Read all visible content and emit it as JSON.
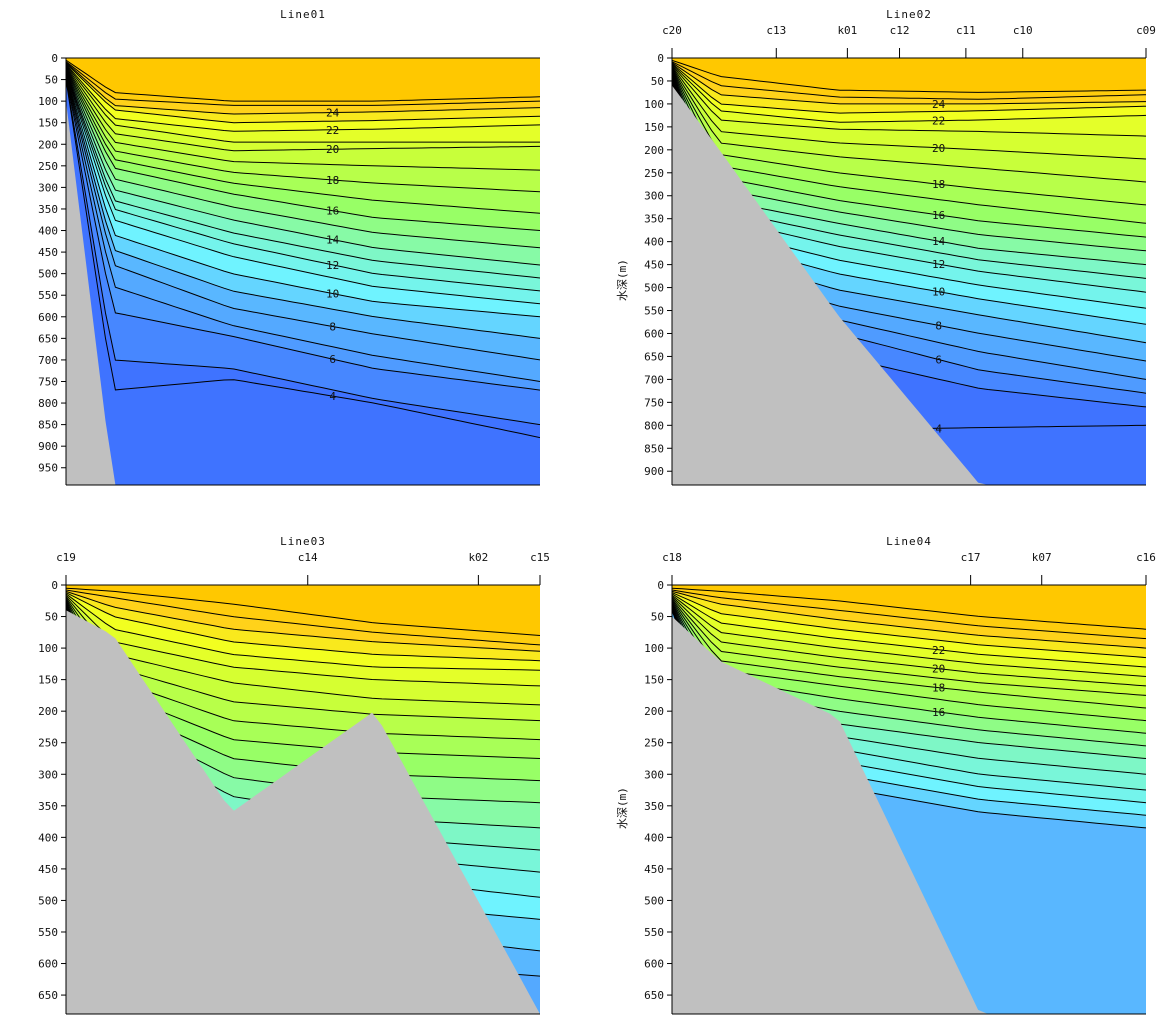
{
  "chart_data": [
    {
      "type": "heatmap",
      "title": "Line01",
      "ylabel": "水深(m)",
      "show_ylabel": false,
      "ylim": [
        0,
        990
      ],
      "yticks": [
        0,
        50,
        100,
        150,
        200,
        250,
        300,
        350,
        400,
        450,
        500,
        550,
        600,
        650,
        700,
        750,
        800,
        850,
        900,
        950
      ],
      "stations": [],
      "surface_isotherm": 26,
      "isotherms": [
        {
          "temp": 26,
          "label": "",
          "depth": [
            5,
            80,
            100,
            100,
            90
          ]
        },
        {
          "temp": 25,
          "label": "",
          "depth": [
            8,
            95,
            110,
            110,
            100
          ]
        },
        {
          "temp": 24,
          "label": "24",
          "depth": [
            10,
            110,
            130,
            125,
            115
          ]
        },
        {
          "temp": 23,
          "label": "",
          "depth": [
            12,
            120,
            150,
            145,
            135
          ]
        },
        {
          "temp": 22,
          "label": "22",
          "depth": [
            14,
            140,
            170,
            165,
            155
          ]
        },
        {
          "temp": 21,
          "label": "",
          "depth": [
            16,
            155,
            195,
            195,
            195
          ]
        },
        {
          "temp": 20,
          "label": "20",
          "depth": [
            18,
            175,
            215,
            210,
            205
          ]
        },
        {
          "temp": 19,
          "label": "",
          "depth": [
            20,
            195,
            240,
            250,
            260
          ]
        },
        {
          "temp": 18,
          "label": "18",
          "depth": [
            22,
            215,
            265,
            290,
            310
          ]
        },
        {
          "temp": 17,
          "label": "",
          "depth": [
            24,
            235,
            290,
            330,
            360
          ]
        },
        {
          "temp": 16,
          "label": "16",
          "depth": [
            26,
            255,
            315,
            370,
            400
          ]
        },
        {
          "temp": 15,
          "label": "",
          "depth": [
            28,
            280,
            345,
            405,
            440
          ]
        },
        {
          "temp": 14,
          "label": "14",
          "depth": [
            30,
            305,
            375,
            440,
            480
          ]
        },
        {
          "temp": 13,
          "label": "",
          "depth": [
            32,
            330,
            405,
            470,
            510
          ]
        },
        {
          "temp": 12,
          "label": "12",
          "depth": [
            34,
            350,
            430,
            500,
            540
          ]
        },
        {
          "temp": 11,
          "label": "",
          "depth": [
            36,
            375,
            460,
            530,
            570
          ]
        },
        {
          "temp": 10,
          "label": "10",
          "depth": [
            38,
            410,
            500,
            565,
            600
          ]
        },
        {
          "temp": 9,
          "label": "",
          "depth": [
            40,
            445,
            540,
            600,
            650
          ]
        },
        {
          "temp": 8,
          "label": "8",
          "depth": [
            42,
            480,
            580,
            640,
            700
          ]
        },
        {
          "temp": 7,
          "label": "",
          "depth": [
            44,
            530,
            620,
            690,
            750
          ]
        },
        {
          "temp": 6,
          "label": "6",
          "depth": [
            46,
            590,
            645,
            720,
            770
          ]
        },
        {
          "temp": 5,
          "label": "",
          "depth": [
            48,
            700,
            720,
            790,
            850
          ]
        },
        {
          "temp": 4,
          "label": "4",
          "depth": [
            50,
            770,
            745,
            800,
            880
          ]
        }
      ],
      "bottom_depth": [
        100,
        990,
        990,
        990,
        990
      ]
    },
    {
      "type": "heatmap",
      "title": "Line02",
      "ylabel": "水深(m)",
      "show_ylabel": true,
      "ylim": [
        0,
        930
      ],
      "yticks": [
        0,
        50,
        100,
        150,
        200,
        250,
        300,
        350,
        400,
        450,
        500,
        550,
        600,
        650,
        700,
        750,
        800,
        850,
        900
      ],
      "stations": [
        {
          "name": "c20",
          "pos": 0.0
        },
        {
          "name": "c13",
          "pos": 0.22
        },
        {
          "name": "k01",
          "pos": 0.37
        },
        {
          "name": "c12",
          "pos": 0.48
        },
        {
          "name": "c11",
          "pos": 0.62
        },
        {
          "name": "c10",
          "pos": 0.74
        },
        {
          "name": "c09",
          "pos": 1.0
        }
      ],
      "surface_isotherm": 26,
      "isotherms": [
        {
          "temp": 26,
          "label": "",
          "depth": [
            5,
            40,
            70,
            75,
            70
          ]
        },
        {
          "temp": 25,
          "label": "",
          "depth": [
            8,
            60,
            85,
            90,
            80
          ]
        },
        {
          "temp": 24,
          "label": "24",
          "depth": [
            10,
            80,
            100,
            100,
            95
          ]
        },
        {
          "temp": 23,
          "label": "",
          "depth": [
            12,
            100,
            120,
            115,
            105
          ]
        },
        {
          "temp": 22,
          "label": "22",
          "depth": [
            14,
            115,
            140,
            135,
            125
          ]
        },
        {
          "temp": 21,
          "label": "",
          "depth": [
            16,
            135,
            155,
            160,
            170
          ]
        },
        {
          "temp": 20,
          "label": "20",
          "depth": [
            18,
            160,
            185,
            200,
            220
          ]
        },
        {
          "temp": 19,
          "label": "",
          "depth": [
            20,
            185,
            215,
            240,
            270
          ]
        },
        {
          "temp": 18,
          "label": "18",
          "depth": [
            22,
            210,
            250,
            285,
            320
          ]
        },
        {
          "temp": 17,
          "label": "",
          "depth": [
            24,
            235,
            280,
            320,
            360
          ]
        },
        {
          "temp": 16,
          "label": "16",
          "depth": [
            26,
            260,
            310,
            355,
            390
          ]
        },
        {
          "temp": 15,
          "label": "",
          "depth": [
            28,
            285,
            335,
            385,
            420
          ]
        },
        {
          "temp": 14,
          "label": "14",
          "depth": [
            30,
            310,
            360,
            415,
            450
          ]
        },
        {
          "temp": 13,
          "label": "",
          "depth": [
            32,
            330,
            385,
            440,
            480
          ]
        },
        {
          "temp": 12,
          "label": "12",
          "depth": [
            34,
            350,
            410,
            465,
            510
          ]
        },
        {
          "temp": 11,
          "label": "",
          "depth": [
            36,
            375,
            440,
            495,
            545
          ]
        },
        {
          "temp": 10,
          "label": "10",
          "depth": [
            38,
            400,
            470,
            525,
            580
          ]
        },
        {
          "temp": 9,
          "label": "",
          "depth": [
            40,
            430,
            505,
            560,
            620
          ]
        },
        {
          "temp": 8,
          "label": "8",
          "depth": [
            42,
            460,
            540,
            600,
            660
          ]
        },
        {
          "temp": 7,
          "label": "",
          "depth": [
            44,
            500,
            570,
            640,
            700
          ]
        },
        {
          "temp": 6,
          "label": "6",
          "depth": [
            46,
            540,
            600,
            680,
            730
          ]
        },
        {
          "temp": 5,
          "label": "",
          "depth": [
            48,
            600,
            650,
            720,
            760
          ]
        },
        {
          "temp": 4,
          "label": "4",
          "depth": [
            50,
            800,
            810,
            805,
            800
          ]
        }
      ],
      "bottom_depth": [
        60,
        200,
        560,
        930,
        930
      ]
    },
    {
      "type": "heatmap",
      "title": "Line03",
      "ylabel": "水深(m)",
      "show_ylabel": false,
      "ylim": [
        0,
        680
      ],
      "yticks": [
        0,
        50,
        100,
        150,
        200,
        250,
        300,
        350,
        400,
        450,
        500,
        550,
        600,
        650
      ],
      "stations": [
        {
          "name": "c19",
          "pos": 0.0
        },
        {
          "name": "c14",
          "pos": 0.51
        },
        {
          "name": "k02",
          "pos": 0.87
        },
        {
          "name": "c15",
          "pos": 1.0
        }
      ],
      "surface_isotherm": 26,
      "isotherms": [
        {
          "temp": 26,
          "label": "",
          "depth": [
            5,
            10,
            30,
            60,
            80
          ]
        },
        {
          "temp": 25,
          "label": "",
          "depth": [
            8,
            20,
            50,
            75,
            95
          ]
        },
        {
          "temp": 24,
          "label": "",
          "depth": [
            10,
            35,
            70,
            90,
            105
          ]
        },
        {
          "temp": 23,
          "label": "",
          "depth": [
            12,
            50,
            90,
            110,
            120
          ]
        },
        {
          "temp": 22,
          "label": "",
          "depth": [
            14,
            70,
            110,
            130,
            135
          ]
        },
        {
          "temp": 21,
          "label": "",
          "depth": [
            16,
            90,
            130,
            150,
            160
          ]
        },
        {
          "temp": 20,
          "label": "",
          "depth": [
            18,
            110,
            155,
            180,
            190
          ]
        },
        {
          "temp": 19,
          "label": "",
          "depth": [
            20,
            130,
            185,
            205,
            215
          ]
        },
        {
          "temp": 18,
          "label": "",
          "depth": [
            22,
            150,
            215,
            235,
            245
          ]
        },
        {
          "temp": 17,
          "label": "",
          "depth": [
            24,
            170,
            245,
            265,
            275
          ]
        },
        {
          "temp": 16,
          "label": "",
          "depth": [
            26,
            190,
            275,
            300,
            310
          ]
        },
        {
          "temp": 15,
          "label": "",
          "depth": [
            28,
            210,
            305,
            335,
            345
          ]
        },
        {
          "temp": 14,
          "label": "",
          "depth": [
            30,
            230,
            335,
            370,
            385
          ]
        },
        {
          "temp": 13,
          "label": "",
          "depth": [
            32,
            250,
            360,
            400,
            420
          ]
        },
        {
          "temp": 12,
          "label": "",
          "depth": [
            34,
            270,
            385,
            430,
            455
          ]
        },
        {
          "temp": 11,
          "label": "",
          "depth": [
            36,
            290,
            410,
            465,
            495
          ]
        },
        {
          "temp": 10,
          "label": "",
          "depth": [
            38,
            310,
            440,
            505,
            530
          ]
        },
        {
          "temp": 9,
          "label": "",
          "depth": [
            40,
            330,
            470,
            550,
            580
          ]
        },
        {
          "temp": 8,
          "label": "",
          "depth": [
            42,
            350,
            500,
            600,
            620
          ]
        }
      ],
      "bottom_depth": [
        40,
        80,
        360,
        200,
        680
      ]
    },
    {
      "type": "heatmap",
      "title": "Line04",
      "ylabel": "水深(m)",
      "show_ylabel": true,
      "ylim": [
        0,
        680
      ],
      "yticks": [
        0,
        50,
        100,
        150,
        200,
        250,
        300,
        350,
        400,
        450,
        500,
        550,
        600,
        650
      ],
      "stations": [
        {
          "name": "c18",
          "pos": 0.0
        },
        {
          "name": "c17",
          "pos": 0.63
        },
        {
          "name": "k07",
          "pos": 0.78
        },
        {
          "name": "c16",
          "pos": 1.0
        }
      ],
      "surface_isotherm": 26,
      "isotherms": [
        {
          "temp": 26,
          "label": "",
          "depth": [
            5,
            10,
            25,
            50,
            70
          ]
        },
        {
          "temp": 25,
          "label": "",
          "depth": [
            8,
            20,
            40,
            65,
            85
          ]
        },
        {
          "temp": 24,
          "label": "",
          "depth": [
            10,
            30,
            55,
            80,
            100
          ]
        },
        {
          "temp": 23,
          "label": "",
          "depth": [
            12,
            45,
            70,
            95,
            115
          ]
        },
        {
          "temp": 22,
          "label": "22",
          "depth": [
            14,
            60,
            85,
            110,
            130
          ]
        },
        {
          "temp": 21,
          "label": "",
          "depth": [
            16,
            75,
            100,
            125,
            145
          ]
        },
        {
          "temp": 20,
          "label": "20",
          "depth": [
            18,
            90,
            115,
            140,
            160
          ]
        },
        {
          "temp": 19,
          "label": "",
          "depth": [
            20,
            105,
            130,
            155,
            175
          ]
        },
        {
          "temp": 18,
          "label": "18",
          "depth": [
            22,
            120,
            145,
            170,
            195
          ]
        },
        {
          "temp": 17,
          "label": "",
          "depth": [
            24,
            135,
            160,
            190,
            215
          ]
        },
        {
          "temp": 16,
          "label": "16",
          "depth": [
            26,
            150,
            180,
            210,
            235
          ]
        },
        {
          "temp": 15,
          "label": "",
          "depth": [
            28,
            165,
            200,
            230,
            255
          ]
        },
        {
          "temp": 14,
          "label": "",
          "depth": [
            30,
            180,
            220,
            250,
            275
          ]
        },
        {
          "temp": 13,
          "label": "",
          "depth": [
            32,
            195,
            240,
            275,
            300
          ]
        },
        {
          "temp": 12,
          "label": "",
          "depth": [
            34,
            210,
            260,
            300,
            325
          ]
        },
        {
          "temp": 11,
          "label": "",
          "depth": [
            36,
            225,
            280,
            320,
            345
          ]
        },
        {
          "temp": 10,
          "label": "",
          "depth": [
            38,
            240,
            300,
            340,
            365
          ]
        },
        {
          "temp": 9,
          "label": "",
          "depth": [
            40,
            255,
            320,
            360,
            385
          ]
        }
      ],
      "bottom_depth": [
        50,
        120,
        210,
        680,
        680
      ]
    }
  ],
  "colors": {
    "land": "#c0c0c0",
    "ramp": [
      {
        "t": 4,
        "c": "#3f73ff"
      },
      {
        "t": 6,
        "c": "#4f9bff"
      },
      {
        "t": 8,
        "c": "#59b7ff"
      },
      {
        "t": 10,
        "c": "#6ff3ff"
      },
      {
        "t": 13,
        "c": "#7ef7c6"
      },
      {
        "t": 16,
        "c": "#98ff66"
      },
      {
        "t": 19,
        "c": "#c8ff3a"
      },
      {
        "t": 22,
        "c": "#f2ff20"
      },
      {
        "t": 24,
        "c": "#ffd21a"
      },
      {
        "t": 26,
        "c": "#ffc800"
      }
    ]
  }
}
